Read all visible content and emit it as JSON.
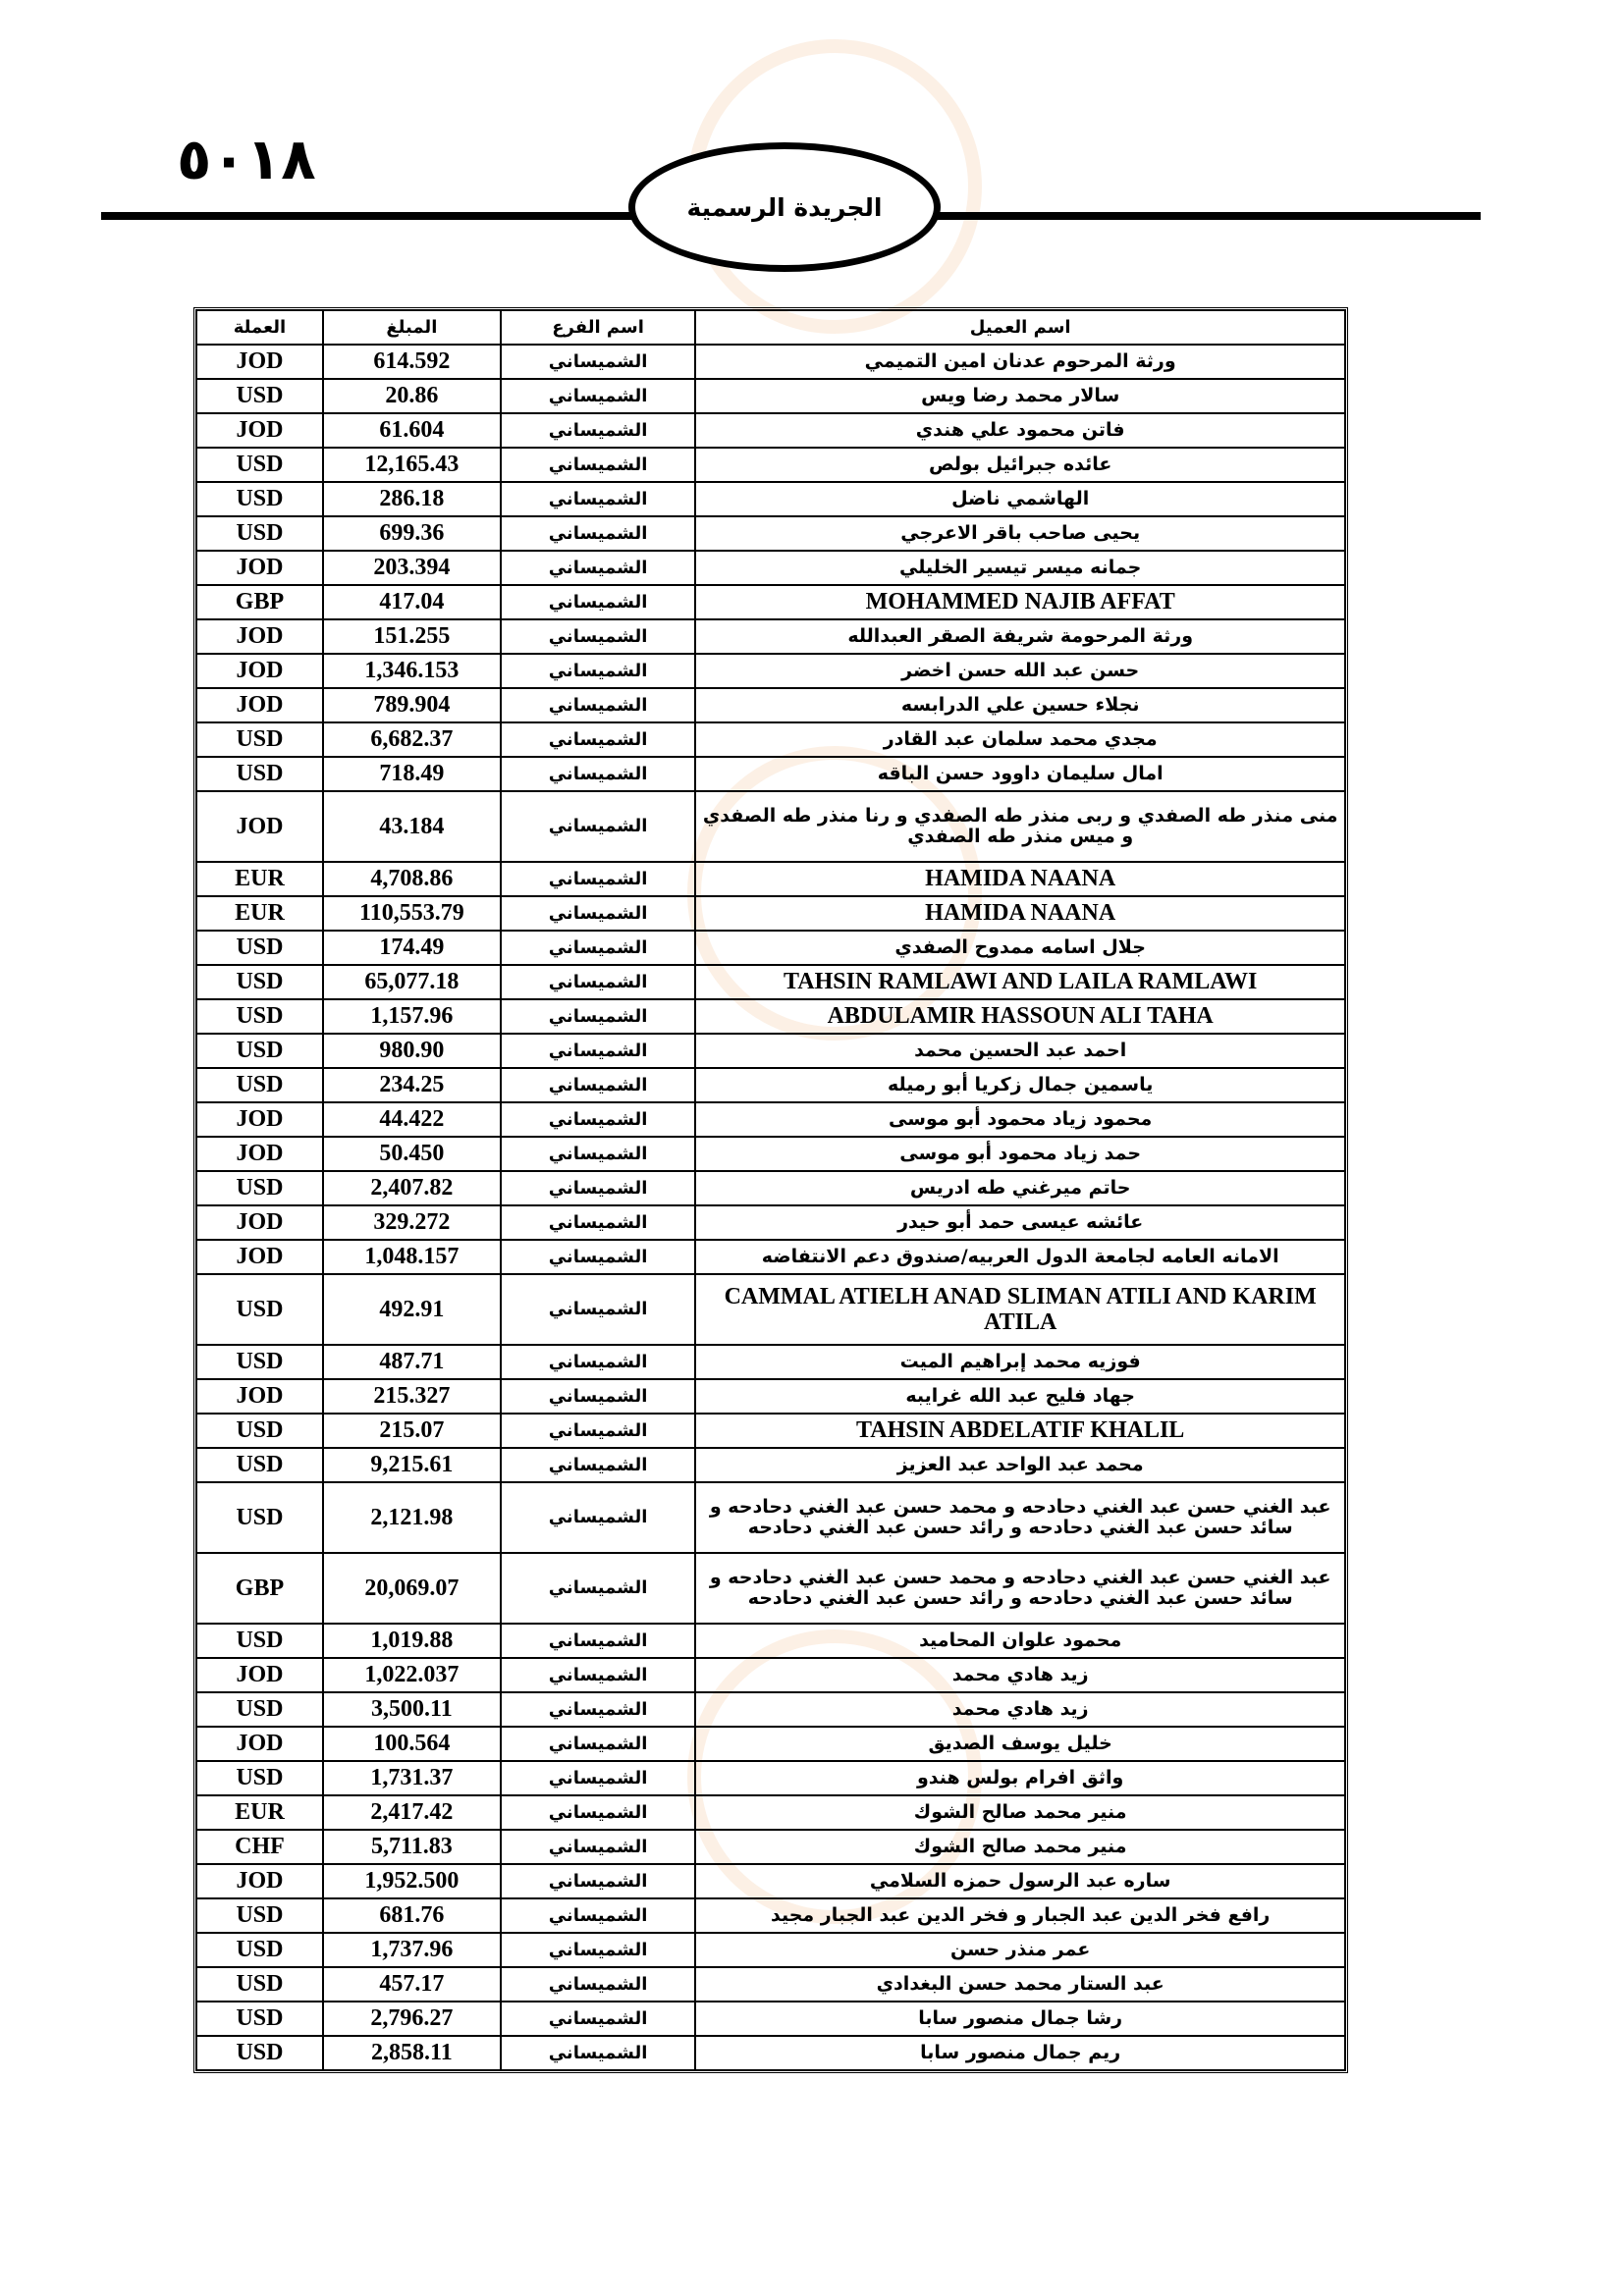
{
  "page_number": "٥٠١٨",
  "header_title": "الجريدة الرسمية",
  "table": {
    "headers": {
      "name": "اسم العميل",
      "branch": "اسم الفرع",
      "amount": "المبلغ",
      "currency": "العملة"
    },
    "rows": [
      {
        "name": "ورثة المرحوم عدنان امين التميمي",
        "branch": "الشميساني",
        "amount": "614.592",
        "currency": "JOD"
      },
      {
        "name": "سالار محمد رضا ويس",
        "branch": "الشميساني",
        "amount": "20.86",
        "currency": "USD"
      },
      {
        "name": "فاتن محمود علي هندي",
        "branch": "الشميساني",
        "amount": "61.604",
        "currency": "JOD"
      },
      {
        "name": "عائده جبرائيل بولص",
        "branch": "الشميساني",
        "amount": "12,165.43",
        "currency": "USD"
      },
      {
        "name": "الهاشمي ناضل",
        "branch": "الشميساني",
        "amount": "286.18",
        "currency": "USD"
      },
      {
        "name": "يحيى صاحب باقر الاعرجي",
        "branch": "الشميساني",
        "amount": "699.36",
        "currency": "USD"
      },
      {
        "name": "جمانه ميسر تيسير الخليلي",
        "branch": "الشميساني",
        "amount": "203.394",
        "currency": "JOD"
      },
      {
        "name": "MOHAMMED NAJIB AFFAT",
        "branch": "الشميساني",
        "amount": "417.04",
        "currency": "GBP",
        "latin": true
      },
      {
        "name": "ورثة المرحومة شريفة الصقر العبدالله",
        "branch": "الشميساني",
        "amount": "151.255",
        "currency": "JOD"
      },
      {
        "name": "حسن عبد الله حسن اخضر",
        "branch": "الشميساني",
        "amount": "1,346.153",
        "currency": "JOD"
      },
      {
        "name": "نجلاء حسين علي الدرابسه",
        "branch": "الشميساني",
        "amount": "789.904",
        "currency": "JOD"
      },
      {
        "name": "مجدي محمد سلمان عبد القادر",
        "branch": "الشميساني",
        "amount": "6,682.37",
        "currency": "USD"
      },
      {
        "name": "امال سليمان داوود حسن الباقه",
        "branch": "الشميساني",
        "amount": "718.49",
        "currency": "USD"
      },
      {
        "name": "منى منذر طه الصفدي و  ربى منذر طه الصفدي و رنا منذر طه الصفدي و ميس منذر طه الصفدي",
        "branch": "الشميساني",
        "amount": "43.184",
        "currency": "JOD",
        "double": true
      },
      {
        "name": "HAMIDA NAANA",
        "branch": "الشميساني",
        "amount": "4,708.86",
        "currency": "EUR",
        "latin": true
      },
      {
        "name": "HAMIDA NAANA",
        "branch": "الشميساني",
        "amount": "110,553.79",
        "currency": "EUR",
        "latin": true
      },
      {
        "name": "جلال اسامه ممدوح الصفدي",
        "branch": "الشميساني",
        "amount": "174.49",
        "currency": "USD"
      },
      {
        "name": "TAHSIN RAMLAWI AND LAILA RAMLAWI",
        "branch": "الشميساني",
        "amount": "65,077.18",
        "currency": "USD",
        "latin": true
      },
      {
        "name": "ABDULAMIR HASSOUN ALI TAHA",
        "branch": "الشميساني",
        "amount": "1,157.96",
        "currency": "USD",
        "latin": true
      },
      {
        "name": "احمد عبد الحسين محمد",
        "branch": "الشميساني",
        "amount": "980.90",
        "currency": "USD"
      },
      {
        "name": "ياسمين جمال زكريا أبو رميله",
        "branch": "الشميساني",
        "amount": "234.25",
        "currency": "USD"
      },
      {
        "name": "محمود زياد محمود أبو موسى",
        "branch": "الشميساني",
        "amount": "44.422",
        "currency": "JOD"
      },
      {
        "name": "حمد زياد محمود أبو موسى",
        "branch": "الشميساني",
        "amount": "50.450",
        "currency": "JOD"
      },
      {
        "name": "حاتم ميرغني طه ادريس",
        "branch": "الشميساني",
        "amount": "2,407.82",
        "currency": "USD"
      },
      {
        "name": "عائشه عيسى حمد أبو حيدر",
        "branch": "الشميساني",
        "amount": "329.272",
        "currency": "JOD"
      },
      {
        "name": "الامانه العامه لجامعة الدول العربيه/صندوق دعم الانتفاضه",
        "branch": "الشميساني",
        "amount": "1,048.157",
        "currency": "JOD"
      },
      {
        "name": "CAMMAL ATIELH ANAD SLIMAN ATILI AND KARIM ATILA",
        "branch": "الشميساني",
        "amount": "492.91",
        "currency": "USD",
        "latin": true,
        "double": true
      },
      {
        "name": "فوزيه محمد إبراهيم الميت",
        "branch": "الشميساني",
        "amount": "487.71",
        "currency": "USD"
      },
      {
        "name": "جهاد فليح عبد الله غرايبه",
        "branch": "الشميساني",
        "amount": "215.327",
        "currency": "JOD"
      },
      {
        "name": "TAHSIN ABDELATIF KHALIL",
        "branch": "الشميساني",
        "amount": "215.07",
        "currency": "USD",
        "latin": true
      },
      {
        "name": "محمد عبد الواحد عبد العزيز",
        "branch": "الشميساني",
        "amount": "9,215.61",
        "currency": "USD"
      },
      {
        "name": "عبد الغني حسن عبد الغني دحادحه و محمد حسن عبد الغني دحادحه و سائد حسن عبد الغني دحادحه و رائد حسن عبد الغني دحادحه",
        "branch": "الشميساني",
        "amount": "2,121.98",
        "currency": "USD",
        "double": true
      },
      {
        "name": "عبد الغني حسن عبد الغني دحادحه و محمد حسن عبد الغني دحادحه و سائد حسن عبد الغني دحادحه و رائد حسن عبد الغني دحادحه",
        "branch": "الشميساني",
        "amount": "20,069.07",
        "currency": "GBP",
        "double": true
      },
      {
        "name": "محمود علوان المحاميد",
        "branch": "الشميساني",
        "amount": "1,019.88",
        "currency": "USD"
      },
      {
        "name": "زيد هادي محمد",
        "branch": "الشميساني",
        "amount": "1,022.037",
        "currency": "JOD"
      },
      {
        "name": "زيد هادي محمد",
        "branch": "الشميساني",
        "amount": "3,500.11",
        "currency": "USD"
      },
      {
        "name": "خليل يوسف الصديق",
        "branch": "الشميساني",
        "amount": "100.564",
        "currency": "JOD"
      },
      {
        "name": "واثق افرام بولس هندو",
        "branch": "الشميساني",
        "amount": "1,731.37",
        "currency": "USD"
      },
      {
        "name": "منير محمد صالح الشوك",
        "branch": "الشميساني",
        "amount": "2,417.42",
        "currency": "EUR"
      },
      {
        "name": "منير محمد صالح الشوك",
        "branch": "الشميساني",
        "amount": "5,711.83",
        "currency": "CHF"
      },
      {
        "name": "ساره عبد الرسول حمزه السلامي",
        "branch": "الشميساني",
        "amount": "1,952.500",
        "currency": "JOD"
      },
      {
        "name": "رافع فخر الدين عبد الجبار و فخر الدين عبد الجبار مجيد",
        "branch": "الشميساني",
        "amount": "681.76",
        "currency": "USD"
      },
      {
        "name": "عمر منذر حسن",
        "branch": "الشميساني",
        "amount": "1,737.96",
        "currency": "USD"
      },
      {
        "name": "عبد الستار محمد حسن البغدادي",
        "branch": "الشميساني",
        "amount": "457.17",
        "currency": "USD"
      },
      {
        "name": "رشا جمال منصور سابا",
        "branch": "الشميساني",
        "amount": "2,796.27",
        "currency": "USD"
      },
      {
        "name": "ريم جمال منصور سابا",
        "branch": "الشميساني",
        "amount": "2,858.11",
        "currency": "USD"
      }
    ]
  }
}
